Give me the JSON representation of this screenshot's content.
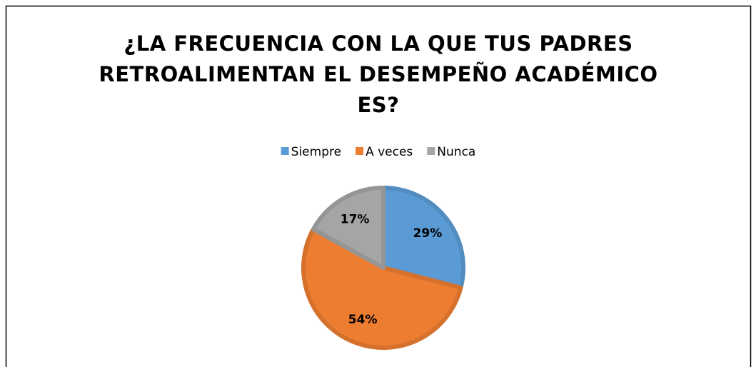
{
  "chart_data": {
    "type": "pie",
    "title": "¿LA FRECUENCIA CON LA QUE TUS PADRES RETROALIMENTAN EL DESEMPEÑO ACADÉMICO ES?",
    "categories": [
      "Siempre",
      "A veces",
      "Nunca"
    ],
    "values": [
      29,
      54,
      17
    ],
    "value_labels": [
      "29%",
      "54%",
      "17%"
    ],
    "colors": [
      "#5b9bd5",
      "#ed7d31",
      "#a5a5a5"
    ],
    "legend": "top"
  }
}
